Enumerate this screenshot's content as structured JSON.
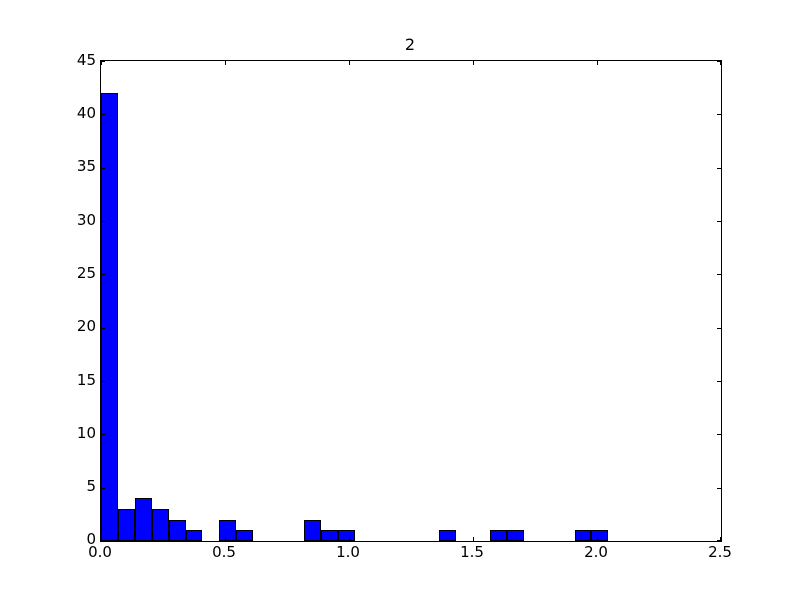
{
  "figure": {
    "background": "#ffffff",
    "spine_color": "#000000",
    "text_color": "#000000"
  },
  "chart_data": {
    "type": "bar",
    "subtype": "histogram",
    "title": "2",
    "xlabel": "",
    "ylabel": "",
    "grid": false,
    "legend": null,
    "xlim": [
      0.0,
      2.5
    ],
    "ylim": [
      0,
      45
    ],
    "bin_start": 0.0,
    "bin_width": 0.0682,
    "counts": [
      42,
      3,
      4,
      3,
      2,
      1,
      0,
      2,
      1,
      0,
      0,
      0,
      2,
      1,
      1,
      0,
      0,
      0,
      0,
      0,
      1,
      0,
      0,
      1,
      1,
      0,
      0,
      0,
      1,
      1
    ],
    "total_count": 67,
    "xticks": [
      0.0,
      0.5,
      1.0,
      1.5,
      2.0,
      2.5
    ],
    "xtick_labels": [
      "0.0",
      "0.5",
      "1.0",
      "1.5",
      "2.0",
      "2.5"
    ],
    "yticks": [
      0,
      5,
      10,
      15,
      20,
      25,
      30,
      35,
      40,
      45
    ],
    "ytick_labels": [
      "0",
      "5",
      "10",
      "15",
      "20",
      "25",
      "30",
      "35",
      "40",
      "45"
    ],
    "bar_color": "#0000ff",
    "bar_edge_color": "#000000"
  }
}
